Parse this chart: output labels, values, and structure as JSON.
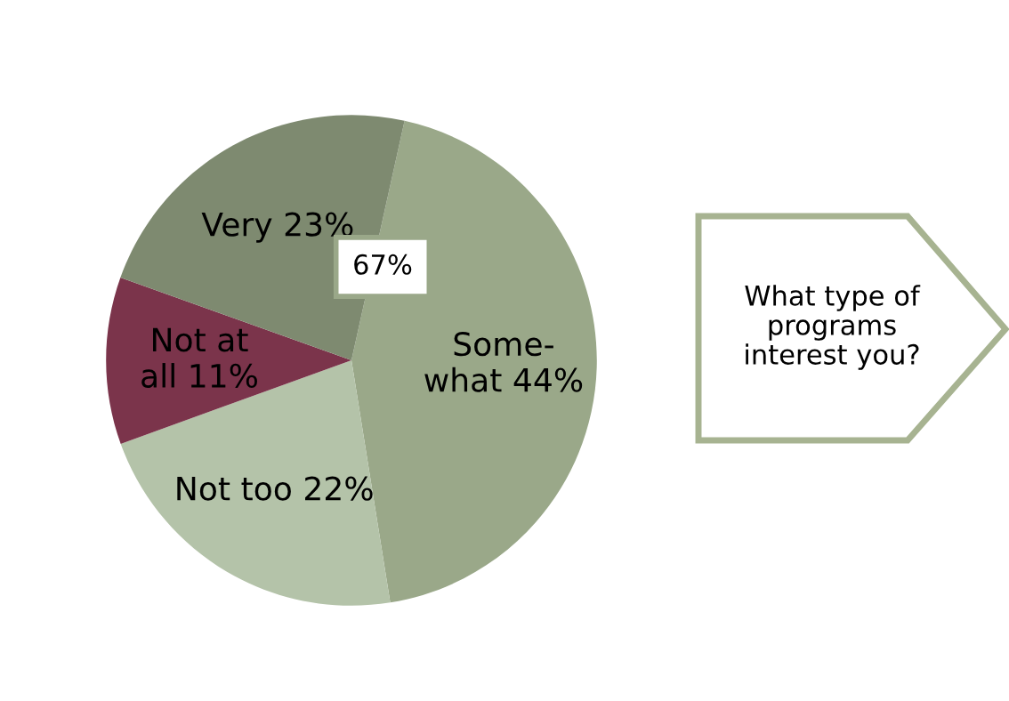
{
  "chart_data": {
    "type": "pie",
    "categories": [
      "Some-\nwhat",
      "Not too",
      "Not at\nall",
      "Very"
    ],
    "values": [
      44,
      22,
      11,
      23
    ],
    "value_labels": [
      "44%",
      "22%",
      "11%",
      "23%"
    ],
    "colors": [
      "#9aa889",
      "#b4c3a9",
      "#7b344b",
      "#7e8a70"
    ],
    "annotations": [
      "67%",
      "What type of\nprograms\ninterest you?"
    ]
  }
}
